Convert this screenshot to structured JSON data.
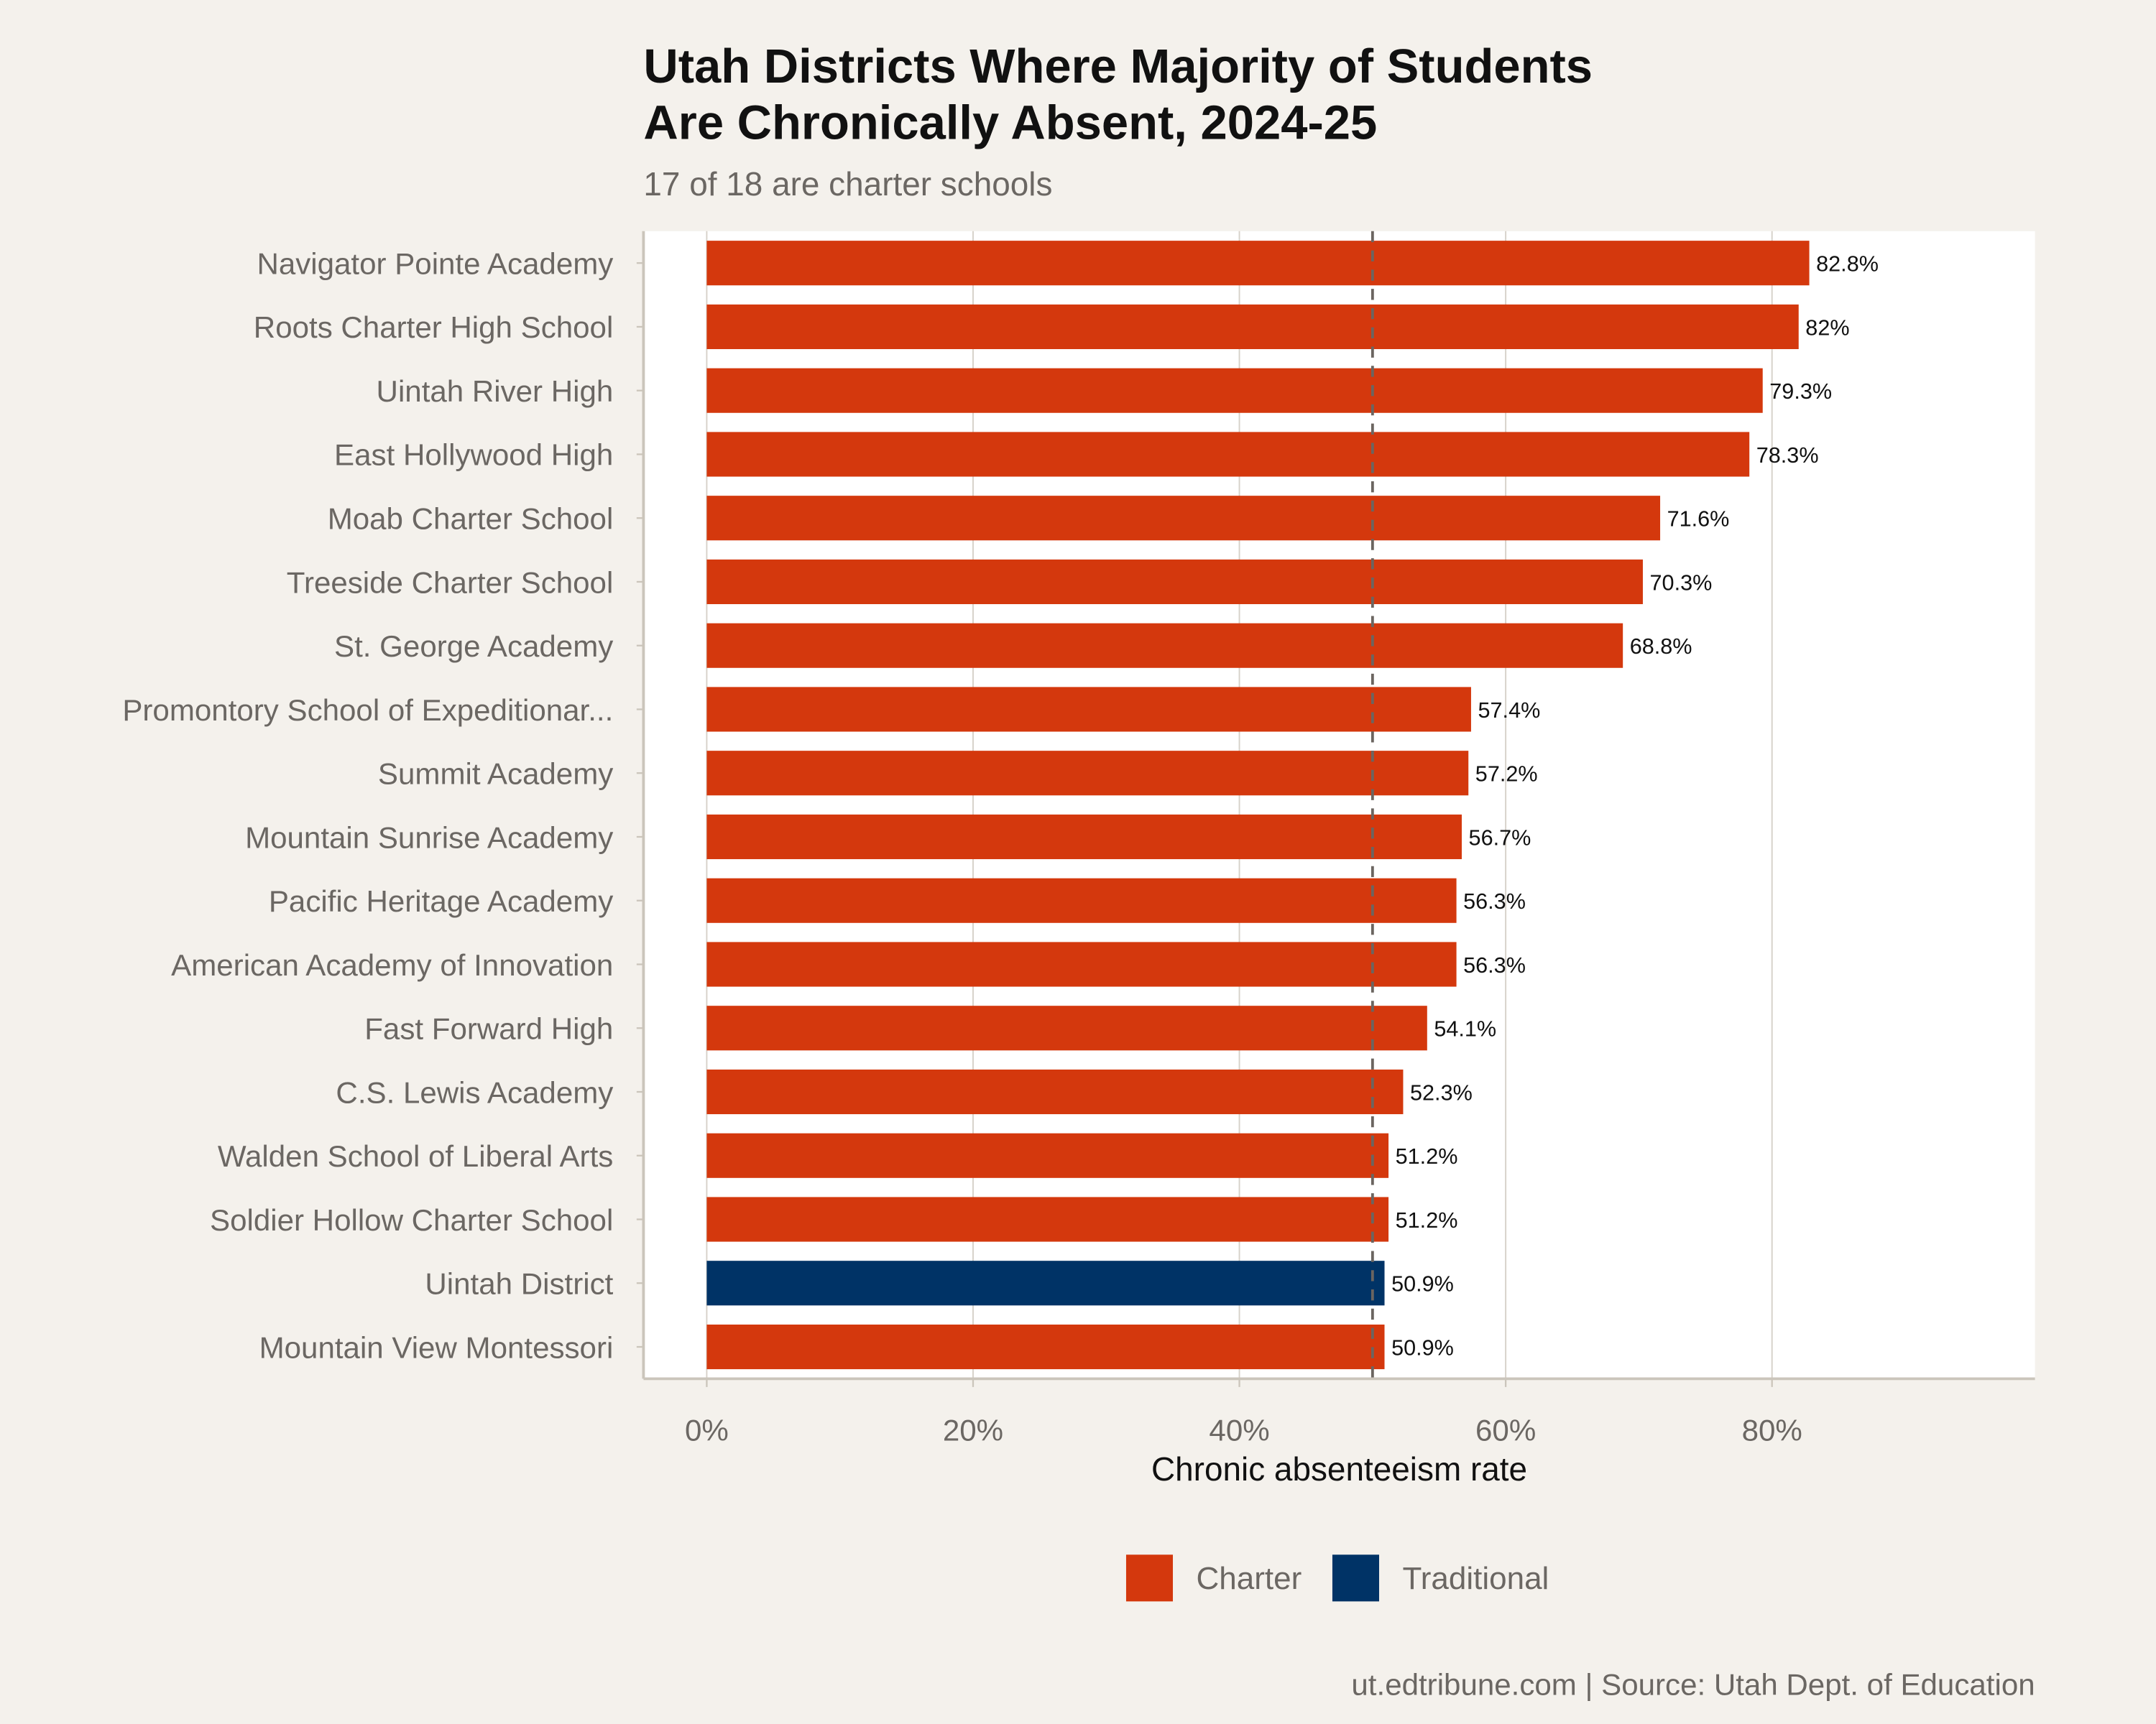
{
  "chart_data": {
    "type": "bar",
    "orientation": "horizontal",
    "title_lines": [
      "Utah Districts Where Majority of Students",
      "Are Chronically Absent, 2024-25"
    ],
    "subtitle": "17 of 18 are charter schools",
    "xlabel": "Chronic absenteeism rate",
    "ylabel": "",
    "xlim": [
      0,
      95
    ],
    "xticks": [
      0,
      20,
      40,
      60,
      80
    ],
    "xtick_labels": [
      "0%",
      "20%",
      "40%",
      "60%",
      "80%"
    ],
    "grid": true,
    "reference_line": {
      "value": 50,
      "style": "dashed",
      "color": "#6B6560"
    },
    "legend_position": "bottom",
    "legend": [
      {
        "name": "Charter",
        "color": "#D4380D"
      },
      {
        "name": "Traditional",
        "color": "#003366"
      }
    ],
    "categories": [
      "Navigator Pointe Academy",
      "Roots Charter High School",
      "Uintah River High",
      "East Hollywood High",
      "Moab Charter School",
      "Treeside Charter School",
      "St. George Academy",
      "Promontory School of Expeditionar...",
      "Summit Academy",
      "Mountain Sunrise Academy",
      "Pacific Heritage Academy",
      "American Academy of Innovation",
      "Fast Forward High",
      "C.S. Lewis Academy",
      "Walden School of Liberal Arts",
      "Soldier Hollow Charter School",
      "Uintah District",
      "Mountain View Montessori"
    ],
    "values": [
      82.8,
      82,
      79.3,
      78.3,
      71.6,
      70.3,
      68.8,
      57.4,
      57.2,
      56.7,
      56.3,
      56.3,
      54.1,
      52.3,
      51.2,
      51.2,
      50.9,
      50.9
    ],
    "data_labels": [
      "82.8%",
      "82%",
      "79.3%",
      "78.3%",
      "71.6%",
      "70.3%",
      "68.8%",
      "57.4%",
      "57.2%",
      "56.7%",
      "56.3%",
      "56.3%",
      "54.1%",
      "52.3%",
      "51.2%",
      "51.2%",
      "50.9%",
      "50.9%"
    ],
    "groups": [
      "Charter",
      "Charter",
      "Charter",
      "Charter",
      "Charter",
      "Charter",
      "Charter",
      "Charter",
      "Charter",
      "Charter",
      "Charter",
      "Charter",
      "Charter",
      "Charter",
      "Charter",
      "Charter",
      "Traditional",
      "Charter"
    ],
    "caption": "ut.edtribune.com | Source: Utah Dept. of Education"
  }
}
